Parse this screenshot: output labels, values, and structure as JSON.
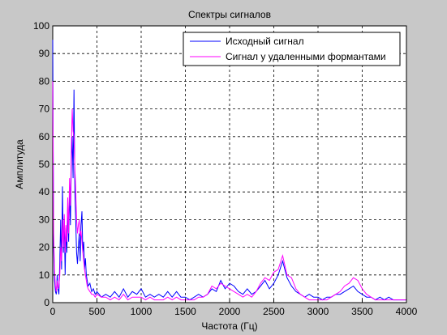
{
  "window": {
    "background": "#c8c8c8"
  },
  "chart_data": {
    "type": "line",
    "title": "Спектры сигналов",
    "xlabel": "Частота (Гц)",
    "ylabel": "Амплитуда",
    "xlim": [
      0,
      4000
    ],
    "ylim": [
      0,
      100
    ],
    "xticks": [
      0,
      500,
      1000,
      1500,
      2000,
      2500,
      3000,
      3500,
      4000
    ],
    "yticks": [
      0,
      10,
      20,
      30,
      40,
      50,
      60,
      70,
      80,
      90,
      100
    ],
    "grid": true,
    "legend_position": "top-right",
    "series": [
      {
        "name": "Исходный сигнал",
        "color": "#0000ff",
        "x": [
          0,
          10,
          20,
          30,
          40,
          50,
          60,
          70,
          80,
          90,
          100,
          110,
          120,
          130,
          140,
          150,
          160,
          170,
          180,
          190,
          200,
          210,
          220,
          230,
          240,
          250,
          260,
          270,
          280,
          290,
          300,
          310,
          320,
          330,
          340,
          350,
          360,
          370,
          380,
          390,
          400,
          420,
          440,
          460,
          480,
          500,
          550,
          600,
          650,
          700,
          750,
          800,
          850,
          900,
          950,
          1000,
          1050,
          1100,
          1150,
          1200,
          1250,
          1300,
          1350,
          1400,
          1450,
          1500,
          1550,
          1600,
          1650,
          1700,
          1750,
          1800,
          1850,
          1900,
          1950,
          2000,
          2050,
          2100,
          2150,
          2200,
          2250,
          2300,
          2350,
          2400,
          2450,
          2500,
          2550,
          2600,
          2650,
          2700,
          2750,
          2800,
          2850,
          2900,
          2950,
          3000,
          3050,
          3100,
          3150,
          3200,
          3250,
          3300,
          3350,
          3400,
          3450,
          3500,
          3550,
          3600,
          3650,
          3700,
          3750,
          3800,
          3850,
          3900,
          3950,
          4000
        ],
        "y": [
          95,
          20,
          8,
          4,
          3,
          10,
          5,
          3,
          15,
          30,
          12,
          42,
          18,
          30,
          10,
          27,
          18,
          35,
          22,
          40,
          28,
          50,
          60,
          45,
          77,
          40,
          30,
          18,
          14,
          20,
          25,
          15,
          28,
          33,
          18,
          22,
          12,
          16,
          10,
          8,
          6,
          7,
          4,
          5,
          3,
          4,
          2,
          3,
          2,
          4,
          2,
          5,
          2,
          4,
          3,
          5,
          2,
          3,
          2,
          3,
          2,
          4,
          2,
          4,
          2,
          2,
          1,
          2,
          3,
          2,
          3,
          5,
          4,
          8,
          5,
          7,
          6,
          4,
          3,
          5,
          3,
          4,
          6,
          8,
          5,
          7,
          10,
          15,
          9,
          6,
          4,
          3,
          2,
          3,
          2,
          2,
          1,
          2,
          2,
          3,
          3,
          4,
          5,
          6,
          4,
          3,
          2,
          2,
          1,
          2,
          1,
          2,
          1,
          1,
          1,
          1
        ]
      },
      {
        "name": "Сигнал у удаленными формантами",
        "color": "#ff00ff",
        "x": [
          0,
          10,
          20,
          30,
          40,
          50,
          60,
          70,
          80,
          90,
          100,
          110,
          120,
          130,
          140,
          150,
          160,
          170,
          180,
          190,
          200,
          210,
          220,
          230,
          240,
          250,
          260,
          270,
          280,
          290,
          300,
          310,
          320,
          330,
          340,
          350,
          360,
          370,
          380,
          390,
          400,
          420,
          440,
          460,
          480,
          500,
          550,
          600,
          650,
          700,
          750,
          800,
          850,
          900,
          950,
          1000,
          1050,
          1100,
          1150,
          1200,
          1250,
          1300,
          1350,
          1400,
          1450,
          1500,
          1550,
          1600,
          1650,
          1700,
          1750,
          1800,
          1850,
          1900,
          1950,
          2000,
          2050,
          2100,
          2150,
          2200,
          2250,
          2300,
          2350,
          2400,
          2450,
          2500,
          2550,
          2600,
          2650,
          2700,
          2750,
          2800,
          2850,
          2900,
          2950,
          3000,
          3050,
          3100,
          3150,
          3200,
          3250,
          3300,
          3350,
          3400,
          3450,
          3500,
          3550,
          3600,
          3650,
          3700,
          3750,
          3800,
          3850,
          3900,
          3950,
          4000
        ],
        "y": [
          80,
          25,
          12,
          6,
          4,
          8,
          5,
          6,
          10,
          20,
          15,
          30,
          20,
          32,
          18,
          28,
          22,
          38,
          25,
          45,
          35,
          55,
          70,
          62,
          60,
          48,
          42,
          30,
          25,
          28,
          30,
          24,
          26,
          22,
          18,
          15,
          12,
          10,
          8,
          6,
          5,
          4,
          3,
          3,
          2,
          3,
          2,
          2,
          1,
          2,
          1,
          3,
          1,
          2,
          2,
          2,
          1,
          2,
          1,
          1,
          1,
          2,
          1,
          2,
          1,
          1,
          1,
          1,
          2,
          2,
          3,
          6,
          5,
          7,
          6,
          5,
          4,
          3,
          2,
          3,
          2,
          4,
          7,
          9,
          8,
          11,
          12,
          17,
          10,
          9,
          5,
          3,
          2,
          1,
          1,
          1,
          1,
          1,
          2,
          3,
          4,
          6,
          7,
          9,
          8,
          5,
          3,
          2,
          1,
          1,
          1,
          1,
          1,
          1,
          1,
          1
        ]
      }
    ]
  }
}
